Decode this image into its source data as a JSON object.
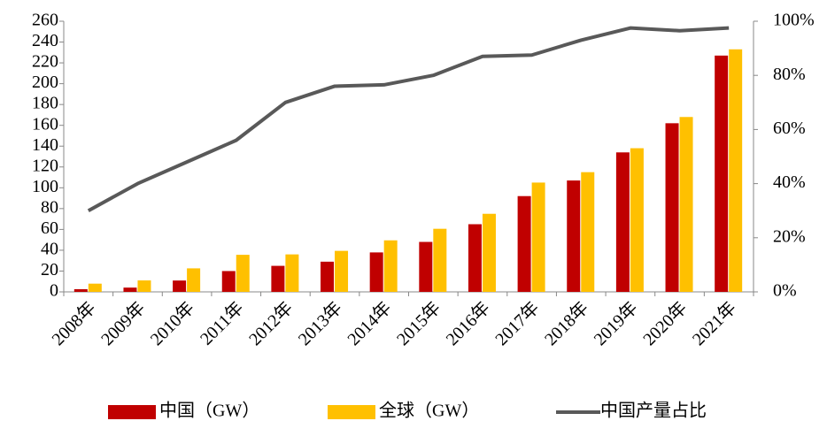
{
  "chart_data": {
    "type": "bar",
    "categories": [
      "2008年",
      "2009年",
      "2010年",
      "2011年",
      "2012年",
      "2013年",
      "2014年",
      "2015年",
      "2016年",
      "2017年",
      "2018年",
      "2019年",
      "2020年",
      "2021年"
    ],
    "series": [
      {
        "name": "中国（GW）",
        "color": "#c00000",
        "values": [
          2.6,
          4.1,
          10.9,
          20,
          25,
          29,
          37.9,
          48,
          65,
          92,
          107,
          134,
          162,
          227
        ]
      },
      {
        "name": "全球（GW）",
        "color": "#ffc000",
        "values": [
          7.9,
          11,
          22.6,
          35.6,
          36,
          39.4,
          49.5,
          60.6,
          75,
          105,
          115,
          138,
          168,
          233
        ]
      },
      {
        "name": "中国产量占比",
        "color": "#595959",
        "type": "line",
        "axis": "y2",
        "values": [
          30,
          40,
          48,
          56,
          70,
          76,
          76.5,
          80,
          87,
          87.5,
          93,
          97.5,
          96.5,
          97.5
        ]
      }
    ],
    "ylim": [
      0,
      260
    ],
    "yticks": [
      0,
      20,
      40,
      60,
      80,
      100,
      120,
      140,
      160,
      180,
      200,
      220,
      240,
      260
    ],
    "y2lim": [
      0,
      100
    ],
    "y2ticks": [
      {
        "value": 0,
        "label": "0%"
      },
      {
        "value": 20,
        "label": "20%"
      },
      {
        "value": 40,
        "label": "40%"
      },
      {
        "value": 60,
        "label": "60%"
      },
      {
        "value": 80,
        "label": "80%"
      },
      {
        "value": 100,
        "label": "100%"
      }
    ],
    "legend": "bottom"
  }
}
